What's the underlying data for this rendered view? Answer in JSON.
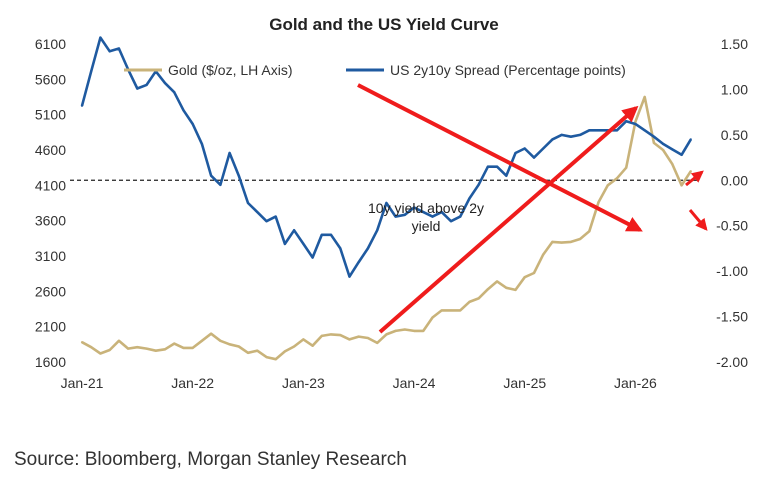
{
  "chart_data": {
    "type": "line",
    "title": "Gold and the US Yield Curve",
    "x_ticks": [
      "Jan-21",
      "Jan-22",
      "Jan-23",
      "Jan-24",
      "Jan-25",
      "Jan-26"
    ],
    "y_left_ticks": [
      "6100",
      "5600",
      "5100",
      "4600",
      "4100",
      "3600",
      "3100",
      "2600",
      "2100",
      "1600"
    ],
    "y_right_ticks": [
      "1.50",
      "1.00",
      "0.50",
      "0.00",
      "-0.50",
      "-1.00",
      "-1.50",
      "-2.00"
    ],
    "ylim_left": [
      1600,
      6100
    ],
    "ylim_right": [
      -2.0,
      1.5
    ],
    "xlim": [
      "2021-01",
      "2026-08"
    ],
    "reference_line": {
      "axis": "right",
      "value": 0.0,
      "style": "dashed"
    },
    "legend": {
      "placement": "top",
      "gold_label": "Gold ($/oz, LH Axis)",
      "spread_label": "US 2y10y Spread (Percentage points)"
    },
    "annotation": {
      "line1": "10y yield above 2y",
      "line2": "yield"
    },
    "series": [
      {
        "name": "Gold ($/oz, LH Axis)",
        "axis": "left",
        "color": "#c9b37a",
        "points": [
          [
            "2021-01",
            1880
          ],
          [
            "2021-02",
            1810
          ],
          [
            "2021-03",
            1720
          ],
          [
            "2021-04",
            1770
          ],
          [
            "2021-05",
            1900
          ],
          [
            "2021-06",
            1790
          ],
          [
            "2021-07",
            1810
          ],
          [
            "2021-08",
            1790
          ],
          [
            "2021-09",
            1760
          ],
          [
            "2021-10",
            1780
          ],
          [
            "2021-11",
            1860
          ],
          [
            "2021-12",
            1800
          ],
          [
            "2022-01",
            1800
          ],
          [
            "2022-02",
            1900
          ],
          [
            "2022-03",
            2000
          ],
          [
            "2022-04",
            1900
          ],
          [
            "2022-05",
            1850
          ],
          [
            "2022-06",
            1820
          ],
          [
            "2022-07",
            1730
          ],
          [
            "2022-08",
            1760
          ],
          [
            "2022-09",
            1670
          ],
          [
            "2022-10",
            1640
          ],
          [
            "2022-11",
            1750
          ],
          [
            "2022-12",
            1820
          ],
          [
            "2023-01",
            1920
          ],
          [
            "2023-02",
            1830
          ],
          [
            "2023-03",
            1970
          ],
          [
            "2023-04",
            1990
          ],
          [
            "2023-05",
            1980
          ],
          [
            "2023-06",
            1920
          ],
          [
            "2023-07",
            1960
          ],
          [
            "2023-08",
            1940
          ],
          [
            "2023-09",
            1870
          ],
          [
            "2023-10",
            1990
          ],
          [
            "2023-11",
            2040
          ],
          [
            "2023-12",
            2060
          ],
          [
            "2024-01",
            2040
          ],
          [
            "2024-02",
            2040
          ],
          [
            "2024-03",
            2230
          ],
          [
            "2024-04",
            2330
          ],
          [
            "2024-05",
            2330
          ],
          [
            "2024-06",
            2330
          ],
          [
            "2024-07",
            2450
          ],
          [
            "2024-08",
            2500
          ],
          [
            "2024-09",
            2630
          ],
          [
            "2024-10",
            2740
          ],
          [
            "2024-11",
            2650
          ],
          [
            "2024-12",
            2620
          ],
          [
            "2025-01",
            2800
          ],
          [
            "2025-02",
            2860
          ],
          [
            "2025-03",
            3120
          ],
          [
            "2025-04",
            3300
          ],
          [
            "2025-05",
            3290
          ],
          [
            "2025-06",
            3300
          ],
          [
            "2025-07",
            3340
          ],
          [
            "2025-08",
            3450
          ],
          [
            "2025-09",
            3860
          ],
          [
            "2025-10",
            4100
          ],
          [
            "2025-11",
            4200
          ],
          [
            "2025-12",
            4350
          ],
          [
            "2026-01",
            5000
          ],
          [
            "2026-02",
            5350
          ],
          [
            "2026-03",
            4700
          ],
          [
            "2026-04",
            4600
          ],
          [
            "2026-05",
            4400
          ],
          [
            "2026-06",
            4100
          ],
          [
            "2026-07",
            4300
          ]
        ]
      },
      {
        "name": "US 2y10y Spread (Percentage points)",
        "axis": "right",
        "color": "#1f5aa0",
        "points": [
          [
            "2021-01",
            0.82
          ],
          [
            "2021-02",
            1.2
          ],
          [
            "2021-03",
            1.57
          ],
          [
            "2021-04",
            1.42
          ],
          [
            "2021-05",
            1.45
          ],
          [
            "2021-06",
            1.22
          ],
          [
            "2021-07",
            1.01
          ],
          [
            "2021-08",
            1.05
          ],
          [
            "2021-09",
            1.2
          ],
          [
            "2021-10",
            1.07
          ],
          [
            "2021-11",
            0.97
          ],
          [
            "2021-12",
            0.77
          ],
          [
            "2022-01",
            0.62
          ],
          [
            "2022-02",
            0.4
          ],
          [
            "2022-03",
            0.05
          ],
          [
            "2022-04",
            -0.05
          ],
          [
            "2022-05",
            0.3
          ],
          [
            "2022-06",
            0.05
          ],
          [
            "2022-07",
            -0.25
          ],
          [
            "2022-08",
            -0.35
          ],
          [
            "2022-09",
            -0.45
          ],
          [
            "2022-10",
            -0.4
          ],
          [
            "2022-11",
            -0.7
          ],
          [
            "2022-12",
            -0.55
          ],
          [
            "2023-01",
            -0.7
          ],
          [
            "2023-02",
            -0.85
          ],
          [
            "2023-03",
            -0.6
          ],
          [
            "2023-04",
            -0.6
          ],
          [
            "2023-05",
            -0.75
          ],
          [
            "2023-06",
            -1.06
          ],
          [
            "2023-07",
            -0.9
          ],
          [
            "2023-08",
            -0.75
          ],
          [
            "2023-09",
            -0.55
          ],
          [
            "2023-10",
            -0.25
          ],
          [
            "2023-11",
            -0.4
          ],
          [
            "2023-12",
            -0.38
          ],
          [
            "2024-01",
            -0.3
          ],
          [
            "2024-02",
            -0.35
          ],
          [
            "2024-03",
            -0.4
          ],
          [
            "2024-04",
            -0.35
          ],
          [
            "2024-05",
            -0.45
          ],
          [
            "2024-06",
            -0.4
          ],
          [
            "2024-07",
            -0.2
          ],
          [
            "2024-08",
            -0.05
          ],
          [
            "2024-09",
            0.15
          ],
          [
            "2024-10",
            0.15
          ],
          [
            "2024-11",
            0.05
          ],
          [
            "2024-12",
            0.3
          ],
          [
            "2025-01",
            0.35
          ],
          [
            "2025-02",
            0.25
          ],
          [
            "2025-03",
            0.35
          ],
          [
            "2025-04",
            0.45
          ],
          [
            "2025-05",
            0.5
          ],
          [
            "2025-06",
            0.48
          ],
          [
            "2025-07",
            0.5
          ],
          [
            "2025-08",
            0.55
          ],
          [
            "2025-09",
            0.55
          ],
          [
            "2025-10",
            0.55
          ],
          [
            "2025-11",
            0.55
          ],
          [
            "2025-12",
            0.65
          ],
          [
            "2026-01",
            0.62
          ],
          [
            "2026-02",
            0.55
          ],
          [
            "2026-03",
            0.48
          ],
          [
            "2026-04",
            0.4
          ],
          [
            "2026-05",
            0.34
          ],
          [
            "2026-06",
            0.28
          ],
          [
            "2026-07",
            0.45
          ]
        ]
      }
    ]
  },
  "source": "Source: Bloomberg, Morgan Stanley Research",
  "colors": {
    "gold": "#c9b37a",
    "spread": "#1f5aa0",
    "arrow": "#ef1c1c",
    "zero_line": "#222222"
  }
}
